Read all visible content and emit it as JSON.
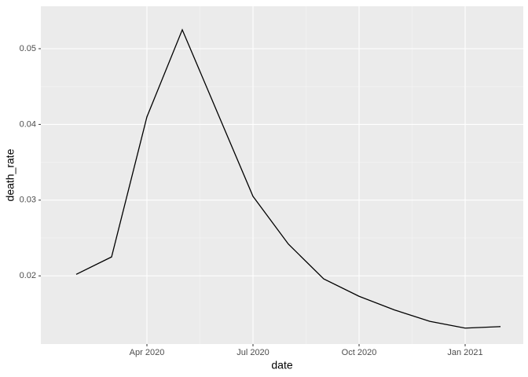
{
  "chart_data": {
    "type": "line",
    "x_label": "date",
    "y_label": "death_rate",
    "x": [
      "2020-02",
      "2020-03",
      "2020-04",
      "2020-05",
      "2020-06",
      "2020-07",
      "2020-08",
      "2020-09",
      "2020-10",
      "2020-11",
      "2020-12",
      "2021-01",
      "2021-02"
    ],
    "series": [
      {
        "name": "death_rate",
        "color": "#000000",
        "values": [
          0.0202,
          0.0225,
          0.041,
          0.0525,
          0.0415,
          0.0305,
          0.0242,
          0.0196,
          0.0173,
          0.0155,
          0.014,
          0.0131,
          0.0133
        ]
      }
    ],
    "xlim": [
      "2020-01",
      "2021-02"
    ],
    "xticks": [
      {
        "value": "2020-04",
        "label": "Apr 2020"
      },
      {
        "value": "2020-07",
        "label": "Jul 2020"
      },
      {
        "value": "2020-10",
        "label": "Oct 2020"
      },
      {
        "value": "2021-01",
        "label": "Jan 2021"
      }
    ],
    "ylim": [
      0.011,
      0.0556
    ],
    "yticks": [
      0.02,
      0.03,
      0.04,
      0.05
    ],
    "grid": true
  }
}
